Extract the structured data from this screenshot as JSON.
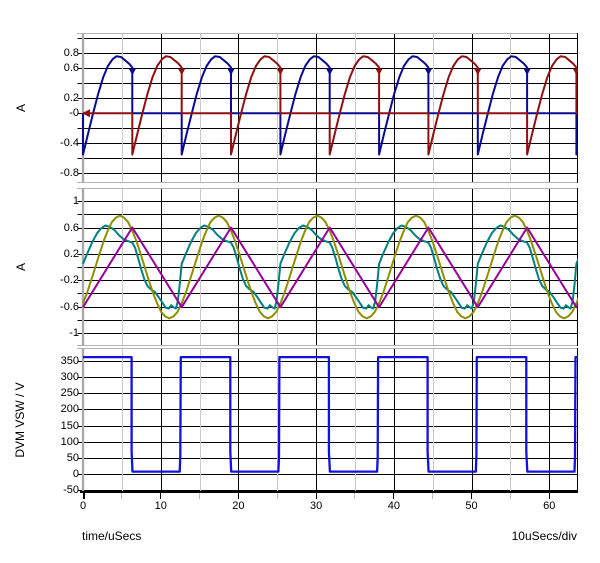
{
  "figure": {
    "background": "#ffffff"
  },
  "xaxis": {
    "caption": "time/uSecs",
    "scale": "10uSecs/div",
    "range_us": [
      0,
      63.7
    ],
    "major_ticks": [
      {
        "t": 0,
        "label": "0"
      },
      {
        "t": 10,
        "label": "10"
      },
      {
        "t": 20,
        "label": "20"
      },
      {
        "t": 30,
        "label": "30"
      },
      {
        "t": 40,
        "label": "40"
      },
      {
        "t": 50,
        "label": "50"
      },
      {
        "t": 60,
        "label": "60"
      }
    ],
    "minor_ticks": [
      5,
      15,
      25,
      35,
      45,
      55
    ],
    "grid_major_color": "#000000",
    "grid_minor_color": "#c9c9c9"
  },
  "chart_data": [
    {
      "id": "top",
      "type": "line",
      "ylabel": "A",
      "ylim": [
        -0.93,
        1.07
      ],
      "ygrid": {
        "min": -0.8,
        "max": 1.0,
        "step": 0.2
      },
      "yticks": [
        {
          "v": 0.8,
          "label": "0.8"
        },
        {
          "v": 0.6,
          "label": "0.6"
        },
        {
          "v": 0.2,
          "label": "0.2"
        },
        {
          "v": 0.0,
          "label": "-0"
        },
        {
          "v": -0.4,
          "label": "-0.4"
        },
        {
          "v": -0.8,
          "label": "-0.8"
        }
      ],
      "series": [
        {
          "name": "rectifier-current-blue",
          "color": "#0a0a90",
          "width": 2,
          "period_us": 12.7,
          "repeat": 6,
          "period_points": [
            [
              0,
              0
            ],
            [
              0,
              -0.55
            ],
            [
              0.65,
              -0.27
            ],
            [
              1.3,
              0
            ],
            [
              1.95,
              0.26
            ],
            [
              2.6,
              0.48
            ],
            [
              3.2,
              0.63
            ],
            [
              3.8,
              0.72
            ],
            [
              4.3,
              0.76
            ],
            [
              4.9,
              0.75
            ],
            [
              5.5,
              0.7
            ],
            [
              5.95,
              0.66
            ],
            [
              6.35,
              0.61
            ],
            [
              6.35,
              0
            ],
            [
              12.7,
              0
            ]
          ]
        },
        {
          "name": "rectifier-current-red",
          "color": "#8f1010",
          "width": 2,
          "period_us": 12.7,
          "repeat": 6,
          "period_points": [
            [
              0,
              0
            ],
            [
              6.35,
              0
            ],
            [
              6.35,
              -0.55
            ],
            [
              7,
              -0.27
            ],
            [
              7.65,
              0
            ],
            [
              8.3,
              0.26
            ],
            [
              8.95,
              0.48
            ],
            [
              9.55,
              0.63
            ],
            [
              10.15,
              0.72
            ],
            [
              10.65,
              0.76
            ],
            [
              11.25,
              0.75
            ],
            [
              11.85,
              0.7
            ],
            [
              12.3,
              0.66
            ],
            [
              12.7,
              0.61
            ],
            [
              12.7,
              0
            ]
          ]
        }
      ],
      "markers": [
        {
          "shape": "triangle-down",
          "color": "#0a0a90",
          "v": 0.56,
          "t": [
            6.35,
            19.05,
            31.75,
            44.45,
            57.15
          ]
        },
        {
          "shape": "triangle-down",
          "color": "#8f1010",
          "v": 0.56,
          "t": [
            12.7,
            25.4,
            38.1,
            50.8,
            63.5
          ]
        },
        {
          "shape": "triangle-left",
          "color": "#8f1010",
          "v": 0.0,
          "t": [
            0.45
          ]
        }
      ]
    },
    {
      "id": "middle",
      "type": "line",
      "ylabel": "A",
      "ylim": [
        -1.2,
        1.2
      ],
      "ygrid": {
        "min": -1.0,
        "max": 1.0,
        "step": 0.2
      },
      "yticks": [
        {
          "v": 1.0,
          "label": "1"
        },
        {
          "v": 0.6,
          "label": "0.6"
        },
        {
          "v": 0.2,
          "label": "0.2"
        },
        {
          "v": -0.2,
          "label": "-0.2"
        },
        {
          "v": -0.6,
          "label": "-0.6"
        },
        {
          "v": -1.0,
          "label": "-1"
        }
      ],
      "series": [
        {
          "name": "inductor-current-teal",
          "color": "#008080",
          "width": 2,
          "period_us": 12.7,
          "repeat": 6,
          "period_points": [
            [
              0,
              0.05
            ],
            [
              0.6,
              0.22
            ],
            [
              1.2,
              0.38
            ],
            [
              1.8,
              0.51
            ],
            [
              2.35,
              0.59
            ],
            [
              2.9,
              0.63
            ],
            [
              3.45,
              0.61
            ],
            [
              4.05,
              0.56
            ],
            [
              4.65,
              0.48
            ],
            [
              5.25,
              0.42
            ],
            [
              5.85,
              0.39
            ],
            [
              6.35,
              0.37
            ],
            [
              6.7,
              0.29
            ],
            [
              7.1,
              0.13
            ],
            [
              7.5,
              -0.04
            ],
            [
              7.9,
              -0.19
            ],
            [
              8.3,
              -0.29
            ],
            [
              8.75,
              -0.34
            ],
            [
              9.25,
              -0.38
            ],
            [
              9.75,
              -0.46
            ],
            [
              10.25,
              -0.55
            ],
            [
              10.65,
              -0.62
            ],
            [
              11.05,
              -0.63
            ],
            [
              11.35,
              -0.58
            ],
            [
              11.65,
              -0.61
            ],
            [
              11.95,
              -0.63
            ],
            [
              12.2,
              -0.52
            ],
            [
              12.45,
              -0.27
            ],
            [
              12.7,
              0.05
            ]
          ]
        },
        {
          "name": "sine-current-olive",
          "color": "#8f8f00",
          "width": 2,
          "period_us": 12.7,
          "repeat": 6,
          "period_points": [
            [
              0,
              -0.55
            ],
            [
              0.53,
              -0.39
            ],
            [
              1.06,
              -0.2
            ],
            [
              1.59,
              0
            ],
            [
              2.12,
              0.2
            ],
            [
              2.65,
              0.39
            ],
            [
              3.18,
              0.55
            ],
            [
              3.7,
              0.68
            ],
            [
              4.23,
              0.75
            ],
            [
              4.76,
              0.78
            ],
            [
              5.29,
              0.75
            ],
            [
              5.82,
              0.68
            ],
            [
              6.35,
              0.55
            ],
            [
              6.88,
              0.39
            ],
            [
              7.41,
              0.2
            ],
            [
              7.94,
              0
            ],
            [
              8.47,
              -0.2
            ],
            [
              9,
              -0.39
            ],
            [
              9.53,
              -0.55
            ],
            [
              10.05,
              -0.68
            ],
            [
              10.58,
              -0.75
            ],
            [
              11.11,
              -0.78
            ],
            [
              11.64,
              -0.75
            ],
            [
              12.17,
              -0.68
            ],
            [
              12.7,
              -0.55
            ]
          ]
        },
        {
          "name": "triangle-current-purple",
          "color": "#990099",
          "width": 2,
          "period_us": 12.7,
          "repeat": 6,
          "period_points": [
            [
              0,
              -0.61
            ],
            [
              6.35,
              0.6
            ],
            [
              12.7,
              -0.61
            ]
          ]
        }
      ],
      "markers": []
    },
    {
      "id": "bottom",
      "type": "line",
      "ylabel": "DVM VSW / V",
      "ylim": [
        -55,
        390
      ],
      "ygrid": {
        "min": -50,
        "max": 350,
        "step": 50
      },
      "yticks": [
        {
          "v": 350,
          "label": "350"
        },
        {
          "v": 300,
          "label": "300"
        },
        {
          "v": 250,
          "label": "250"
        },
        {
          "v": 200,
          "label": "200"
        },
        {
          "v": 150,
          "label": "150"
        },
        {
          "v": 100,
          "label": "100"
        },
        {
          "v": 50,
          "label": "50"
        },
        {
          "v": 0,
          "label": "0"
        },
        {
          "v": -50,
          "label": "-50"
        }
      ],
      "series": [
        {
          "name": "switch-node-voltage",
          "color": "#1212dd",
          "width": 2.3,
          "period_us": 12.7,
          "repeat": 6,
          "period_points": [
            [
              0,
              362
            ],
            [
              6.25,
              362
            ],
            [
              6.25,
              70
            ],
            [
              6.37,
              8
            ],
            [
              12.45,
              8
            ],
            [
              12.52,
              55
            ],
            [
              12.58,
              362
            ],
            [
              12.7,
              362
            ]
          ]
        }
      ],
      "markers": []
    }
  ],
  "style": {
    "grid_h_color": "#000000",
    "border_color": "#b4b4b4",
    "spine_color": "#a9a9a9",
    "right_border_color": "#000000",
    "tick_color": "#000000",
    "minor_tick_color": "#bdbdbd"
  }
}
